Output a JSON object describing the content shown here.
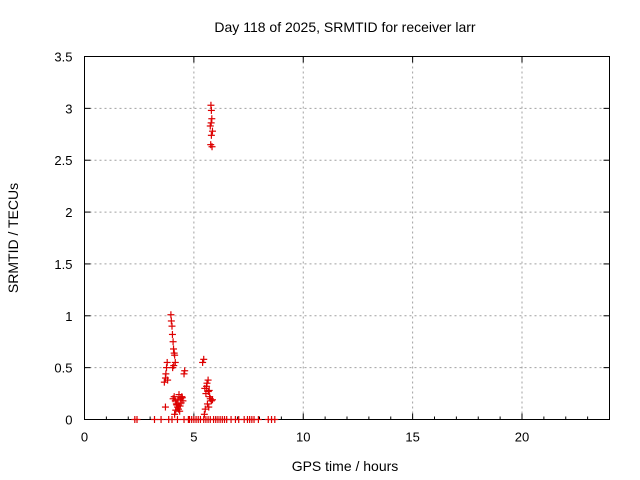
{
  "chart_data": {
    "type": "scatter",
    "title": "Day 118 of 2025, SRMTID for receiver larr",
    "xlabel": "GPS time / hours",
    "ylabel": "SRMTID / TECUs",
    "xlim": [
      0,
      24
    ],
    "ylim": [
      0,
      3.5
    ],
    "xticks": [
      0,
      5,
      10,
      15,
      20
    ],
    "xtick_labels": [
      "0",
      "5",
      "10",
      "15",
      "20"
    ],
    "yticks": [
      0,
      0.5,
      1,
      1.5,
      2,
      2.5,
      3,
      3.5
    ],
    "ytick_labels": [
      "0",
      "0.5",
      "1",
      "1.5",
      "2",
      "2.5",
      "3",
      "3.5"
    ],
    "grid": true,
    "marker": "+",
    "series": [
      {
        "name": "SRMTID",
        "color": "#dd0000",
        "x": [
          2.3,
          2.4,
          3.2,
          3.5,
          3.85,
          4.0,
          4.25,
          4.55,
          4.75,
          4.8,
          4.9,
          5.0,
          5.1,
          5.2,
          5.3,
          5.45,
          5.55,
          5.65,
          5.75,
          5.9,
          6.0,
          6.1,
          6.2,
          6.3,
          6.4,
          6.5,
          6.7,
          6.9,
          7.05,
          7.3,
          7.45,
          7.55,
          7.65,
          7.75,
          7.95,
          8.4,
          8.55,
          8.7,
          3.65,
          3.7,
          3.72,
          3.75,
          3.78,
          3.8,
          3.7,
          3.95,
          3.97,
          4.0,
          4.02,
          4.05,
          4.07,
          4.1,
          4.12,
          4.15,
          4.03,
          4.08,
          4.05,
          4.1,
          4.15,
          4.2,
          4.25,
          4.3,
          4.35,
          4.4,
          4.45,
          4.5,
          4.12,
          4.22,
          4.32,
          4.42,
          4.17,
          4.27,
          4.37,
          4.47,
          4.55,
          4.58,
          5.4,
          5.45,
          5.5,
          5.55,
          5.6,
          5.65,
          5.7,
          5.75,
          5.8,
          5.52,
          5.62,
          5.72,
          5.58,
          5.68,
          5.85,
          5.48,
          5.66,
          5.78,
          5.8,
          5.82,
          5.75,
          5.85,
          5.8,
          5.77,
          5.83,
          5.79
        ],
        "y": [
          0,
          0,
          0,
          0,
          0,
          0,
          0,
          0,
          0,
          0,
          0,
          0,
          0,
          0,
          0,
          0,
          0,
          0,
          0,
          0,
          0,
          0,
          0,
          0,
          0,
          0,
          0,
          0,
          0,
          0,
          0,
          0,
          0,
          0,
          0,
          0,
          0,
          0,
          0.36,
          0.4,
          0.44,
          0.5,
          0.55,
          0.38,
          0.12,
          1.01,
          0.95,
          0.9,
          0.82,
          0.75,
          0.68,
          0.64,
          0.62,
          0.55,
          0.5,
          0.52,
          0.2,
          0.22,
          0.18,
          0.15,
          0.12,
          0.1,
          0.08,
          0.2,
          0.22,
          0.18,
          0.05,
          0.14,
          0.24,
          0.16,
          0.09,
          0.19,
          0.13,
          0.21,
          0.44,
          0.47,
          0.55,
          0.58,
          0.3,
          0.25,
          0.35,
          0.38,
          0.28,
          0.2,
          0.18,
          0.1,
          0.15,
          0.22,
          0.32,
          0.12,
          0.19,
          0.05,
          0.27,
          3.03,
          2.98,
          2.9,
          2.83,
          2.78,
          2.74,
          2.65,
          2.63,
          2.86
        ]
      }
    ]
  }
}
